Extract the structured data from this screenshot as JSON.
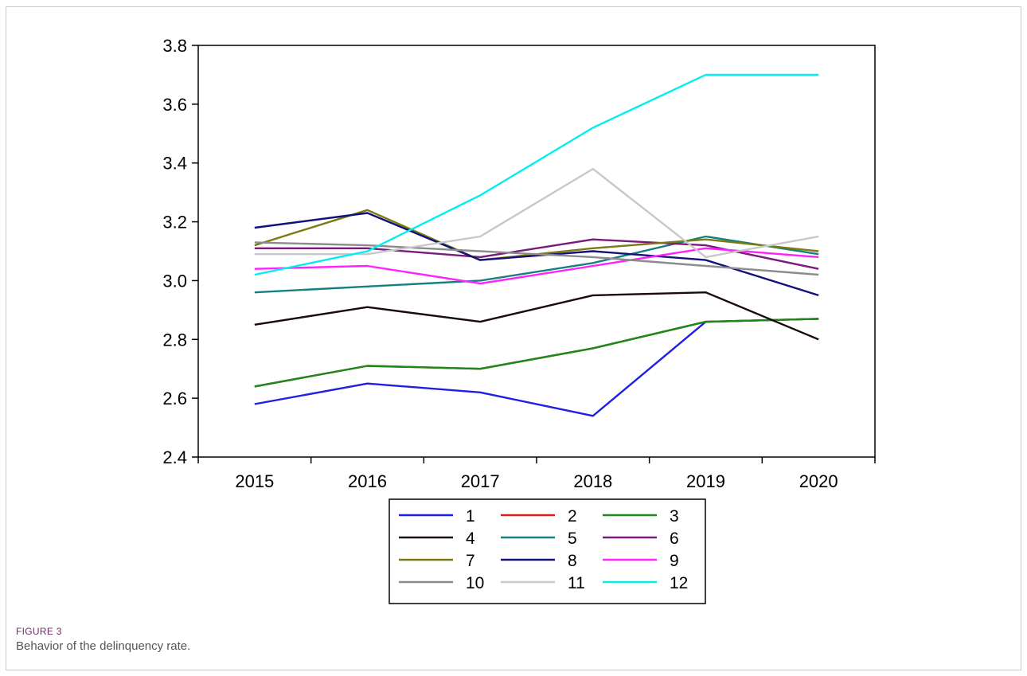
{
  "figure": {
    "label": "FIGURE 3",
    "caption": "Behavior of the delinquency rate."
  },
  "chart_data": {
    "type": "line",
    "x": [
      "2015",
      "2016",
      "2017",
      "2018",
      "2019",
      "2020"
    ],
    "ylim": [
      2.4,
      3.8
    ],
    "yticks": [
      "2.4",
      "2.6",
      "2.8",
      "3.0",
      "3.2",
      "3.4",
      "3.6",
      "3.8"
    ],
    "grid": false,
    "legend_position": "bottom",
    "series": [
      {
        "name": "1",
        "color": "#1f1fe6",
        "values": [
          2.58,
          2.65,
          2.62,
          2.54,
          2.86,
          2.87
        ]
      },
      {
        "name": "2",
        "color": "#e01b1b",
        "values": [
          2.64,
          2.71,
          2.7,
          2.77,
          2.86,
          2.87
        ]
      },
      {
        "name": "3",
        "color": "#1a8a1a",
        "values": [
          2.64,
          2.71,
          2.7,
          2.77,
          2.86,
          2.87
        ]
      },
      {
        "name": "4",
        "color": "#1a0a0a",
        "values": [
          2.85,
          2.91,
          2.86,
          2.95,
          2.96,
          2.8
        ]
      },
      {
        "name": "5",
        "color": "#168080",
        "values": [
          2.96,
          2.98,
          3.0,
          3.06,
          3.15,
          3.09
        ]
      },
      {
        "name": "6",
        "color": "#7a1a7a",
        "values": [
          3.11,
          3.11,
          3.08,
          3.14,
          3.12,
          3.04
        ]
      },
      {
        "name": "7",
        "color": "#7a7a10",
        "values": [
          3.12,
          3.24,
          3.07,
          3.11,
          3.14,
          3.1
        ]
      },
      {
        "name": "8",
        "color": "#12127a",
        "values": [
          3.18,
          3.23,
          3.07,
          3.1,
          3.07,
          2.95
        ]
      },
      {
        "name": "9",
        "color": "#ff22ff",
        "values": [
          3.04,
          3.05,
          2.99,
          3.05,
          3.11,
          3.08
        ]
      },
      {
        "name": "10",
        "color": "#8c8c8c",
        "values": [
          3.13,
          3.12,
          3.1,
          3.08,
          3.05,
          3.02
        ]
      },
      {
        "name": "11",
        "color": "#c8c8c8",
        "values": [
          3.09,
          3.09,
          3.15,
          3.38,
          3.08,
          3.15
        ]
      },
      {
        "name": "12",
        "color": "#00f0f0",
        "values": [
          3.02,
          3.1,
          3.29,
          3.52,
          3.7,
          3.7
        ]
      }
    ]
  }
}
